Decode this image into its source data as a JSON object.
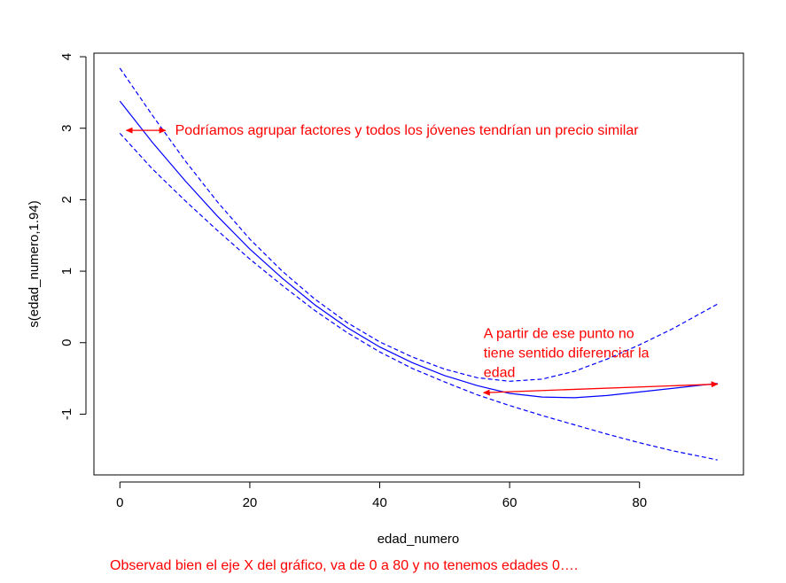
{
  "chart_data": {
    "type": "line",
    "title": "",
    "xlabel": "edad_numero",
    "ylabel": "s(edad_numero,1.94)",
    "xlim": [
      -4,
      96
    ],
    "ylim": [
      -1.85,
      4.05
    ],
    "x_ticks": [
      0,
      20,
      40,
      60,
      80
    ],
    "y_ticks": [
      -1,
      0,
      1,
      2,
      3,
      4
    ],
    "grid": false,
    "colors": {
      "series": "#0000ff",
      "annotation": "#ff0000",
      "axes": "#000000"
    },
    "series": [
      {
        "style": "solid",
        "x": [
          0,
          5,
          10,
          15,
          20,
          25,
          30,
          35,
          40,
          45,
          50,
          55,
          60,
          65,
          70,
          75,
          80,
          85,
          92
        ],
        "y": [
          3.38,
          2.8,
          2.27,
          1.77,
          1.31,
          0.9,
          0.53,
          0.21,
          -0.06,
          -0.28,
          -0.46,
          -0.6,
          -0.71,
          -0.76,
          -0.77,
          -0.74,
          -0.69,
          -0.64,
          -0.57
        ]
      },
      {
        "style": "dashed",
        "x": [
          0,
          5,
          10,
          15,
          20,
          25,
          30,
          35,
          40,
          45,
          50,
          55,
          60,
          65,
          70,
          75,
          80,
          85,
          92
        ],
        "y": [
          3.84,
          3.18,
          2.55,
          1.97,
          1.45,
          1.0,
          0.61,
          0.28,
          0.01,
          -0.2,
          -0.37,
          -0.49,
          -0.54,
          -0.51,
          -0.4,
          -0.23,
          -0.03,
          0.19,
          0.54
        ]
      },
      {
        "style": "dashed",
        "x": [
          0,
          5,
          10,
          15,
          20,
          25,
          30,
          35,
          40,
          45,
          50,
          55,
          60,
          65,
          70,
          75,
          80,
          85,
          92
        ],
        "y": [
          2.93,
          2.43,
          1.99,
          1.57,
          1.17,
          0.8,
          0.45,
          0.14,
          -0.13,
          -0.36,
          -0.55,
          -0.73,
          -0.88,
          -1.02,
          -1.15,
          -1.28,
          -1.4,
          -1.51,
          -1.64
        ]
      }
    ],
    "annotations": [
      {
        "lines": [
          "Podríamos agrupar factores y todos los jóvenes tendrían un precio similar"
        ],
        "text_x": 8.5,
        "text_y": 2.97,
        "arrow": {
          "from": [
            1,
            2.97
          ],
          "to": [
            7,
            2.97
          ],
          "heads": "both"
        }
      },
      {
        "lines": [
          "A partir de ese punto no",
          "tiene sentido diferenciar la",
          "edad"
        ],
        "text_x": 56,
        "text_y": 0.13,
        "arrow": {
          "from": [
            56,
            -0.7
          ],
          "to": [
            92,
            -0.58
          ],
          "heads": "both"
        }
      }
    ]
  },
  "caption": "Observad bien el eje X del gráfico, va de 0 a 80 y no tenemos edades 0…."
}
